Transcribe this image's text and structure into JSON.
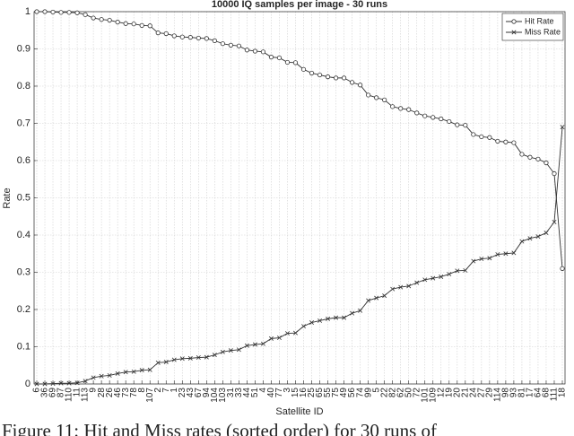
{
  "chart_data": {
    "type": "line",
    "title": "10000 IQ samples per image - 30 runs",
    "x_label": "Satellite ID",
    "y_label": "Rate",
    "caption": "Figure 11: Hit and Miss rates (sorted order) for 30 runs of",
    "categories": [
      "6",
      "36",
      "69",
      "87",
      "110",
      "11",
      "113",
      "9",
      "28",
      "26",
      "46",
      "73",
      "78",
      "8",
      "107",
      "2",
      "7",
      "1",
      "23",
      "43",
      "67",
      "94",
      "104",
      "103",
      "31",
      "33",
      "44",
      "51",
      "4",
      "40",
      "77",
      "3",
      "15",
      "16",
      "25",
      "65",
      "55",
      "75",
      "49",
      "56",
      "74",
      "99",
      "5",
      "22",
      "82",
      "62",
      "50",
      "72",
      "101",
      "109",
      "12",
      "19",
      "20",
      "21",
      "24",
      "27",
      "29",
      "114",
      "98",
      "93",
      "81",
      "17",
      "64",
      "68",
      "111",
      "18"
    ],
    "series": [
      {
        "name": "Hit Rate",
        "color": "#333333",
        "marker": "circle",
        "values": [
          1,
          1,
          0.999,
          0.998,
          0.998,
          0.997,
          0.992,
          0.983,
          0.979,
          0.977,
          0.972,
          0.968,
          0.967,
          0.963,
          0.962,
          0.943,
          0.941,
          0.935,
          0.932,
          0.931,
          0.929,
          0.928,
          0.922,
          0.914,
          0.91,
          0.908,
          0.897,
          0.894,
          0.892,
          0.878,
          0.876,
          0.864,
          0.863,
          0.845,
          0.835,
          0.83,
          0.825,
          0.822,
          0.822,
          0.81,
          0.803,
          0.776,
          0.769,
          0.763,
          0.745,
          0.74,
          0.737,
          0.728,
          0.72,
          0.716,
          0.712,
          0.705,
          0.696,
          0.695,
          0.67,
          0.664,
          0.662,
          0.652,
          0.65,
          0.648,
          0.617,
          0.609,
          0.604,
          0.594,
          0.565,
          0.31
        ]
      },
      {
        "name": "Miss Rate",
        "color": "#333333",
        "marker": "x",
        "values": [
          0,
          0,
          0.001,
          0.002,
          0.002,
          0.003,
          0.008,
          0.017,
          0.021,
          0.023,
          0.028,
          0.032,
          0.033,
          0.037,
          0.038,
          0.057,
          0.059,
          0.065,
          0.068,
          0.069,
          0.071,
          0.072,
          0.078,
          0.086,
          0.09,
          0.092,
          0.103,
          0.106,
          0.108,
          0.122,
          0.124,
          0.136,
          0.137,
          0.155,
          0.165,
          0.17,
          0.175,
          0.178,
          0.178,
          0.19,
          0.197,
          0.224,
          0.231,
          0.237,
          0.255,
          0.26,
          0.263,
          0.272,
          0.28,
          0.284,
          0.288,
          0.295,
          0.304,
          0.305,
          0.33,
          0.336,
          0.338,
          0.348,
          0.35,
          0.352,
          0.383,
          0.391,
          0.396,
          0.406,
          0.435,
          0.69
        ]
      }
    ],
    "ylim": [
      0,
      1
    ],
    "yticks": [
      0,
      0.1,
      0.2,
      0.3,
      0.4,
      0.5,
      0.6,
      0.7,
      0.8,
      0.9,
      1
    ],
    "grid": true,
    "legend": "upper-right"
  }
}
